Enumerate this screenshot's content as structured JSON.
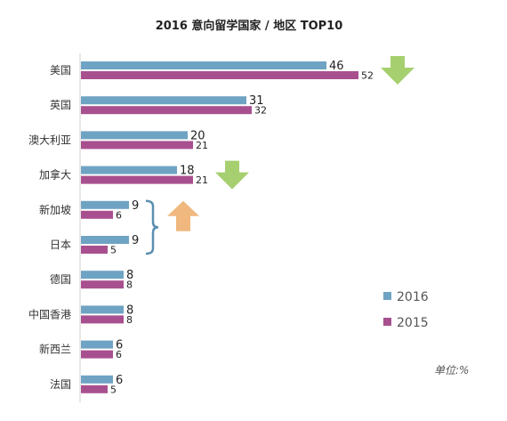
{
  "chart_data": {
    "type": "bar",
    "orientation": "horizontal",
    "title": "2016 意向留学国家 / 地区 TOP10",
    "categories": [
      "美国",
      "英国",
      "澳大利亚",
      "加拿大",
      "新加坡",
      "日本",
      "德国",
      "中国香港",
      "新西兰",
      "法国"
    ],
    "series": [
      {
        "name": "2016",
        "color": "#6fa3c3",
        "values": [
          46,
          31,
          20,
          18,
          9,
          9,
          8,
          8,
          6,
          6
        ]
      },
      {
        "name": "2015",
        "color": "#a8508f",
        "values": [
          52,
          32,
          21,
          21,
          6,
          5,
          8,
          8,
          6,
          5
        ]
      }
    ],
    "unit_note": "单位:%",
    "grid": false,
    "legend_position": "right",
    "annotations": [
      {
        "type": "arrow-down",
        "color": "#a6cf6f",
        "categories": [
          "美国"
        ]
      },
      {
        "type": "arrow-down",
        "color": "#a6cf6f",
        "categories": [
          "加拿大"
        ]
      },
      {
        "type": "arrow-up",
        "color": "#f0b87e",
        "categories": [
          "新加坡",
          "日本"
        ],
        "bracket_color": "#5b8fb0"
      }
    ]
  }
}
